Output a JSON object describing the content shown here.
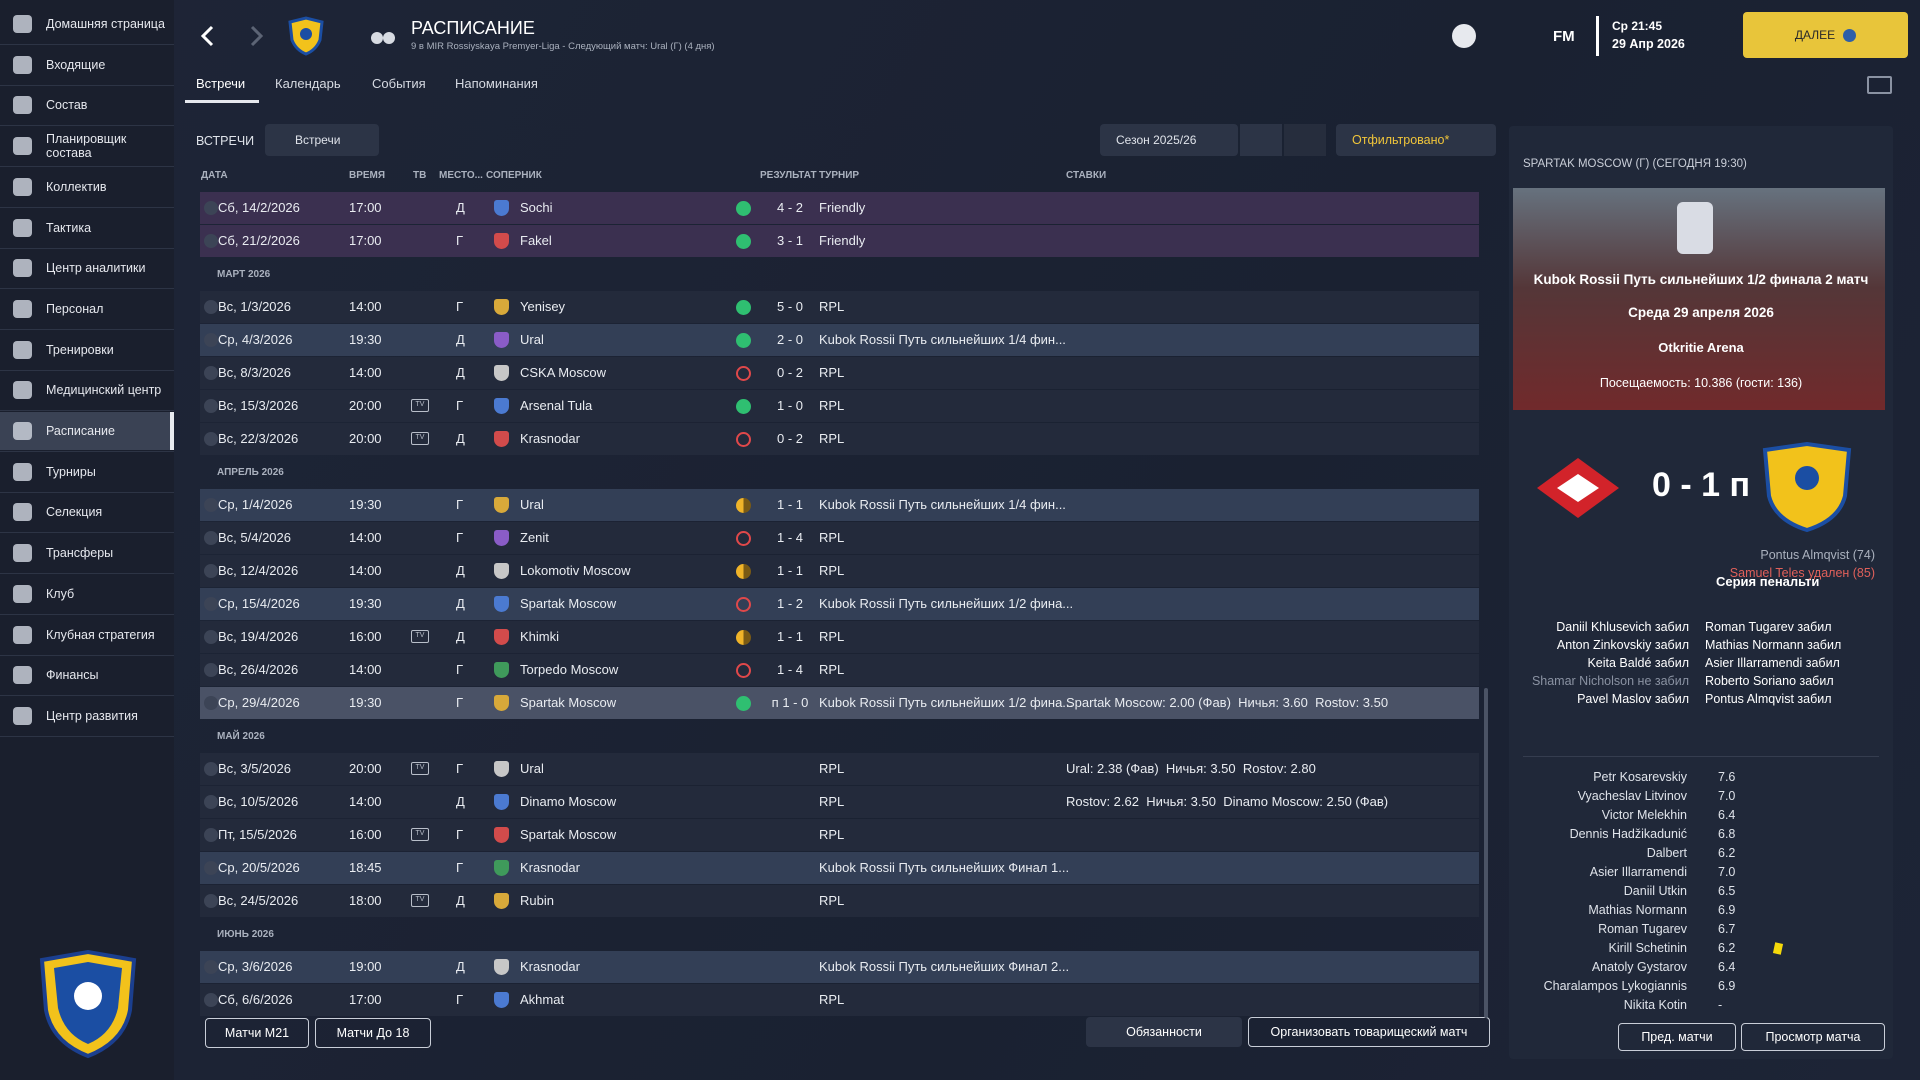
{
  "sidebar": {
    "items": [
      "Домашняя страница",
      "Входящие",
      "Состав",
      "Планировщик состава",
      "Коллектив",
      "Тактика",
      "Центр аналитики",
      "Персонал",
      "Тренировки",
      "Медицинский центр",
      "Расписание",
      "Турниры",
      "Селекция",
      "Трансферы",
      "Клуб",
      "Клубная стратегия",
      "Финансы",
      "Центр развития"
    ],
    "active": 10
  },
  "header": {
    "title": "РАСПИСАНИЕ",
    "subtitle": "9 в MIR Rossiyskaya Premyer-Liga - Следующий матч: Ural (Г) (4 дня)",
    "logo": "FM",
    "time": "Ср 21:45",
    "date": "29 Апр 2026",
    "continue": "ДАЛЕЕ"
  },
  "tabs": {
    "items": [
      "Встречи",
      "Календарь",
      "События",
      "Напоминания"
    ],
    "active": 0
  },
  "toolbar": {
    "label": "ВСТРЕЧИ",
    "view": "Встречи",
    "season": "Сезон 2025/26",
    "filter": "Отфильтровано*"
  },
  "table": {
    "columns": [
      "ДАТА",
      "ВРЕМЯ",
      "ТВ",
      "МЕСТО...",
      "СОПЕРНИК",
      "РЕЗУЛЬТАТ",
      "ТУРНИР",
      "СТАВКИ"
    ],
    "rows": [
      {
        "date": "Сб, 14/2/2026",
        "time": "17:00",
        "venue": "Д",
        "opponent": "Sochi",
        "result": "4 - 2",
        "competition": "Friendly",
        "outcome": "win",
        "style": "friendly"
      },
      {
        "date": "Сб, 21/2/2026",
        "time": "17:00",
        "venue": "Г",
        "opponent": "Fakel",
        "result": "3 - 1",
        "competition": "Friendly",
        "outcome": "win",
        "style": "friendly"
      },
      {
        "group": "МАРТ 2026"
      },
      {
        "date": "Вс, 1/3/2026",
        "time": "14:00",
        "venue": "Г",
        "opponent": "Yenisey",
        "result": "5 - 0",
        "competition": "RPL",
        "outcome": "win"
      },
      {
        "date": "Ср, 4/3/2026",
        "time": "19:30",
        "venue": "Д",
        "opponent": "Ural",
        "result": "2 - 0",
        "competition": "Kubok Rossii Путь сильнейших 1/4 фин...",
        "outcome": "win",
        "style": "cup"
      },
      {
        "date": "Вс, 8/3/2026",
        "time": "14:00",
        "venue": "Д",
        "opponent": "CSKA Moscow",
        "result": "0 - 2",
        "competition": "RPL",
        "outcome": "loss"
      },
      {
        "date": "Вс, 15/3/2026",
        "time": "20:00",
        "tv": "TV",
        "venue": "Г",
        "opponent": "Arsenal Tula",
        "result": "1 - 0",
        "competition": "RPL",
        "outcome": "win"
      },
      {
        "date": "Вс, 22/3/2026",
        "time": "20:00",
        "tv": "TV",
        "venue": "Д",
        "opponent": "Krasnodar",
        "result": "0 - 2",
        "competition": "RPL",
        "outcome": "loss"
      },
      {
        "group": "АПРЕЛЬ 2026"
      },
      {
        "date": "Ср, 1/4/2026",
        "time": "19:30",
        "venue": "Г",
        "opponent": "Ural",
        "result": "1 - 1",
        "competition": "Kubok Rossii Путь сильнейших 1/4 фин...",
        "outcome": "draw",
        "style": "cup"
      },
      {
        "date": "Вс, 5/4/2026",
        "time": "14:00",
        "venue": "Г",
        "opponent": "Zenit",
        "result": "1 - 4",
        "competition": "RPL",
        "outcome": "loss"
      },
      {
        "date": "Вс, 12/4/2026",
        "time": "14:00",
        "venue": "Д",
        "opponent": "Lokomotiv Moscow",
        "result": "1 - 1",
        "competition": "RPL",
        "outcome": "draw"
      },
      {
        "date": "Ср, 15/4/2026",
        "time": "19:30",
        "venue": "Д",
        "opponent": "Spartak Moscow",
        "result": "1 - 2",
        "competition": "Kubok Rossii Путь сильнейших 1/2 фина...",
        "outcome": "loss",
        "style": "cup"
      },
      {
        "date": "Вс, 19/4/2026",
        "time": "16:00",
        "tv": "TV",
        "venue": "Д",
        "opponent": "Khimki",
        "result": "1 - 1",
        "competition": "RPL",
        "outcome": "draw"
      },
      {
        "date": "Вс, 26/4/2026",
        "time": "14:00",
        "venue": "Г",
        "opponent": "Torpedo Moscow",
        "result": "1 - 4",
        "competition": "RPL",
        "outcome": "loss"
      },
      {
        "date": "Ср, 29/4/2026",
        "time": "19:30",
        "venue": "Г",
        "opponent": "Spartak Moscow",
        "result": "п 1 - 0",
        "competition": "Kubok Rossii Путь сильнейших 1/2 фина...",
        "odds": "Spartak Moscow: 2.00 (Фав)  Ничья: 3.60  Rostov: 3.50",
        "outcome": "win",
        "style": "selected"
      },
      {
        "group": "МАЙ 2026"
      },
      {
        "date": "Вс, 3/5/2026",
        "time": "20:00",
        "tv": "TV",
        "venue": "Г",
        "opponent": "Ural",
        "competition": "RPL",
        "odds": "Ural: 2.38 (Фав)  Ничья: 3.50  Rostov: 2.80"
      },
      {
        "date": "Вс, 10/5/2026",
        "time": "14:00",
        "venue": "Д",
        "opponent": "Dinamo Moscow",
        "competition": "RPL",
        "odds": "Rostov: 2.62  Ничья: 3.50  Dinamo Moscow: 2.50 (Фав)"
      },
      {
        "date": "Пт, 15/5/2026",
        "time": "16:00",
        "tv": "TV",
        "venue": "Г",
        "opponent": "Spartak Moscow",
        "competition": "RPL"
      },
      {
        "date": "Ср, 20/5/2026",
        "time": "18:45",
        "venue": "Г",
        "opponent": "Krasnodar",
        "competition": "Kubok Rossii Путь сильнейших Финал 1...",
        "style": "cup"
      },
      {
        "date": "Вс, 24/5/2026",
        "time": "18:00",
        "tv": "TV",
        "venue": "Д",
        "opponent": "Rubin",
        "competition": "RPL"
      },
      {
        "group": "ИЮНЬ 2026"
      },
      {
        "date": "Ср, 3/6/2026",
        "time": "19:00",
        "venue": "Д",
        "opponent": "Krasnodar",
        "competition": "Kubok Rossii Путь сильнейших Финал 2...",
        "style": "cup"
      },
      {
        "date": "Сб, 6/6/2026",
        "time": "17:00",
        "venue": "Г",
        "opponent": "Akhmat",
        "competition": "RPL"
      }
    ]
  },
  "footer": {
    "u21": "Матчи М21",
    "u18": "Матчи До 18",
    "duties": "Обязанности",
    "friendly": "Организовать товарищеский матч"
  },
  "panel": {
    "heading": "SPARTAK MOSCOW (Г) (СЕГОДНЯ 19:30)",
    "competition": "Kubok Rossii Путь сильнейших 1/2 финала 2 матч",
    "date": "Среда 29 апреля 2026",
    "stadium": "Otkritie Arena",
    "attendance": "Посещаемость: 10.386 (гости: 136)",
    "score": "0 - 1 п",
    "scorers": [
      "Pontus Almqvist (74)"
    ],
    "red_card": "Samuel Teles удален (85)",
    "penalties_title": "Серия пенальти",
    "home_penalties": [
      {
        "text": "Daniil Khlusevich забил"
      },
      {
        "text": "Anton Zinkovskiy забил"
      },
      {
        "text": "Keita Baldé забил"
      },
      {
        "text": "Shamar Nicholson не забил",
        "missed": true
      },
      {
        "text": "Pavel Maslov забил"
      }
    ],
    "away_penalties": [
      {
        "text": "Roman Tugarev забил"
      },
      {
        "text": "Mathias Normann забил"
      },
      {
        "text": "Asier Illarramendi забил"
      },
      {
        "text": "Roberto Soriano забил"
      },
      {
        "text": "Pontus Almqvist забил"
      }
    ],
    "ratings": [
      {
        "name": "Petr Kosarevskiy",
        "rating": "7.6"
      },
      {
        "name": "Vyacheslav Litvinov",
        "rating": "7.0"
      },
      {
        "name": "Victor Melekhin",
        "rating": "6.4"
      },
      {
        "name": "Dennis Hadžikadunić",
        "rating": "6.8"
      },
      {
        "name": "Dalbert",
        "rating": "6.2"
      },
      {
        "name": "Asier Illarramendi",
        "rating": "7.0"
      },
      {
        "name": "Daniil Utkin",
        "rating": "6.5"
      },
      {
        "name": "Mathias Normann",
        "rating": "6.9"
      },
      {
        "name": "Roman Tugarev",
        "rating": "6.7"
      },
      {
        "name": "Kirill Schetinin",
        "rating": "6.2",
        "yellow": true
      },
      {
        "name": "Anatoly Gystarov",
        "rating": "6.4"
      },
      {
        "name": "Charalampos Lykogiannis",
        "rating": "6.9"
      },
      {
        "name": "Nikita Kotin",
        "rating": "-"
      }
    ],
    "prev": "Пред. матчи",
    "view": "Просмотр матча"
  }
}
